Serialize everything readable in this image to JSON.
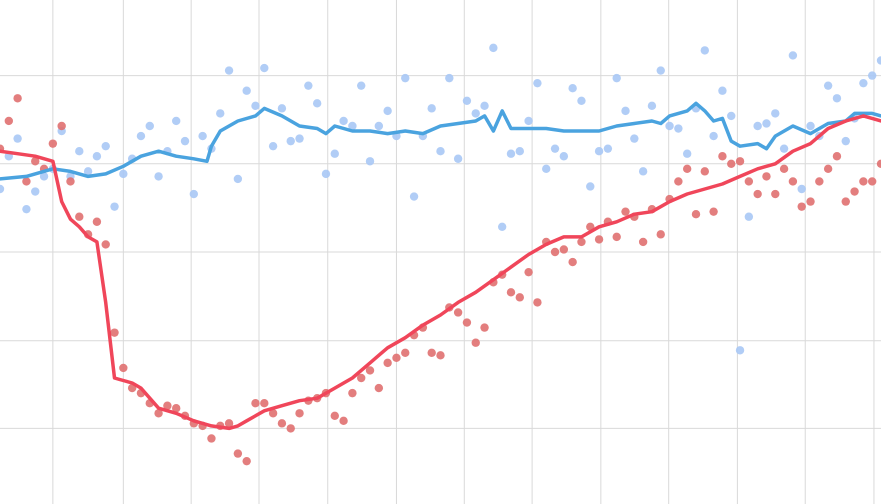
{
  "chart_data": {
    "type": "scatter",
    "title": "",
    "xlabel": "",
    "ylabel": "",
    "xlim": [
      0,
      100
    ],
    "ylim": [
      0,
      100
    ],
    "grid": true,
    "x_gridlines": [
      6,
      14,
      21.7,
      29.4,
      37.2,
      45,
      52.7,
      60.4,
      68.2,
      75.9,
      83.7,
      91.4,
      99.2
    ],
    "y_gridlines": [
      15,
      32.4,
      50,
      67.5,
      85
    ],
    "legend": "none",
    "series": [
      {
        "color": "#4aa3df",
        "point_color": "#a9c8f5",
        "trend": [
          [
            0,
            64.5
          ],
          [
            3,
            65
          ],
          [
            6,
            66.5
          ],
          [
            8,
            66
          ],
          [
            10,
            65
          ],
          [
            12,
            65.5
          ],
          [
            14,
            67
          ],
          [
            16,
            69
          ],
          [
            18,
            70
          ],
          [
            20,
            69
          ],
          [
            22,
            68.5
          ],
          [
            23.5,
            68
          ],
          [
            24,
            71
          ],
          [
            25,
            74
          ],
          [
            27,
            76
          ],
          [
            29,
            77
          ],
          [
            30,
            78.5
          ],
          [
            32,
            77
          ],
          [
            34,
            75
          ],
          [
            36,
            74.5
          ],
          [
            37,
            73.5
          ],
          [
            38,
            75
          ],
          [
            40,
            74
          ],
          [
            42,
            74
          ],
          [
            44,
            73.5
          ],
          [
            46,
            74
          ],
          [
            48,
            73.5
          ],
          [
            50,
            75
          ],
          [
            52,
            75.5
          ],
          [
            54,
            76
          ],
          [
            55,
            77
          ],
          [
            56,
            74
          ],
          [
            57,
            78
          ],
          [
            58,
            74.5
          ],
          [
            60,
            74.5
          ],
          [
            62,
            74.5
          ],
          [
            64,
            74
          ],
          [
            66,
            74
          ],
          [
            68,
            74
          ],
          [
            70,
            75
          ],
          [
            72,
            75.5
          ],
          [
            74,
            76
          ],
          [
            75,
            75.5
          ],
          [
            76,
            77
          ],
          [
            78,
            78
          ],
          [
            79,
            79.5
          ],
          [
            80,
            78
          ],
          [
            81,
            76
          ],
          [
            82,
            76.5
          ],
          [
            83,
            72
          ],
          [
            84,
            71
          ],
          [
            86,
            71.5
          ],
          [
            87,
            70.5
          ],
          [
            88,
            73
          ],
          [
            90,
            75
          ],
          [
            92,
            73.5
          ],
          [
            94,
            75.5
          ],
          [
            96,
            76
          ],
          [
            97,
            77.5
          ],
          [
            99,
            77.5
          ],
          [
            100,
            77
          ]
        ],
        "points": [
          [
            0,
            62.5
          ],
          [
            1,
            69
          ],
          [
            2,
            72.5
          ],
          [
            3,
            58.5
          ],
          [
            4,
            62
          ],
          [
            5,
            65
          ],
          [
            6,
            66.5
          ],
          [
            7,
            74
          ],
          [
            8,
            65
          ],
          [
            9,
            70
          ],
          [
            10,
            66
          ],
          [
            11,
            69
          ],
          [
            12,
            71
          ],
          [
            13,
            59
          ],
          [
            14,
            65.5
          ],
          [
            15,
            68.5
          ],
          [
            16,
            73
          ],
          [
            17,
            75
          ],
          [
            18,
            65
          ],
          [
            19,
            70
          ],
          [
            20,
            76
          ],
          [
            21,
            72
          ],
          [
            22,
            61.5
          ],
          [
            23,
            73
          ],
          [
            24,
            70.5
          ],
          [
            25,
            77.5
          ],
          [
            26,
            86
          ],
          [
            27,
            64.5
          ],
          [
            28,
            82
          ],
          [
            29,
            79
          ],
          [
            30,
            86.5
          ],
          [
            31,
            71
          ],
          [
            32,
            78.5
          ],
          [
            33,
            72
          ],
          [
            34,
            72.5
          ],
          [
            35,
            83
          ],
          [
            36,
            79.5
          ],
          [
            37,
            65.5
          ],
          [
            38,
            69.5
          ],
          [
            39,
            76
          ],
          [
            40,
            75
          ],
          [
            41,
            83
          ],
          [
            42,
            68
          ],
          [
            43,
            75
          ],
          [
            44,
            78
          ],
          [
            45,
            73
          ],
          [
            46,
            84.5
          ],
          [
            47,
            61
          ],
          [
            48,
            73
          ],
          [
            49,
            78.5
          ],
          [
            50,
            70
          ],
          [
            51,
            84.5
          ],
          [
            52,
            68.5
          ],
          [
            53,
            80
          ],
          [
            54,
            77.5
          ],
          [
            55,
            79
          ],
          [
            56,
            90.5
          ],
          [
            57,
            55
          ],
          [
            58,
            69.5
          ],
          [
            59,
            70
          ],
          [
            60,
            76
          ],
          [
            61,
            83.5
          ],
          [
            62,
            66.5
          ],
          [
            63,
            70.5
          ],
          [
            64,
            69
          ],
          [
            65,
            82.5
          ],
          [
            66,
            80
          ],
          [
            67,
            63
          ],
          [
            68,
            70
          ],
          [
            69,
            70.5
          ],
          [
            70,
            84.5
          ],
          [
            71,
            78
          ],
          [
            72,
            72.5
          ],
          [
            73,
            66
          ],
          [
            74,
            79
          ],
          [
            75,
            86
          ],
          [
            76,
            75
          ],
          [
            77,
            74.5
          ],
          [
            78,
            69.5
          ],
          [
            79,
            78.5
          ],
          [
            80,
            90
          ],
          [
            81,
            73
          ],
          [
            82,
            82
          ],
          [
            83,
            77
          ],
          [
            84,
            30.5
          ],
          [
            85,
            57
          ],
          [
            86,
            75
          ],
          [
            87,
            75.5
          ],
          [
            88,
            77.5
          ],
          [
            89,
            70.5
          ],
          [
            90,
            89
          ],
          [
            91,
            62.5
          ],
          [
            92,
            75
          ],
          [
            93,
            73
          ],
          [
            94,
            83
          ],
          [
            95,
            80.5
          ],
          [
            96,
            72
          ],
          [
            97,
            76.5
          ],
          [
            98,
            83.5
          ],
          [
            99,
            85
          ],
          [
            100,
            88
          ]
        ]
      },
      {
        "color": "#f0465a",
        "point_color": "#e07070",
        "trend": [
          [
            0,
            70
          ],
          [
            2,
            69.5
          ],
          [
            4,
            69
          ],
          [
            6,
            68
          ],
          [
            7,
            60
          ],
          [
            8,
            56.5
          ],
          [
            9,
            55
          ],
          [
            10,
            53
          ],
          [
            11,
            52
          ],
          [
            12,
            40
          ],
          [
            13,
            25
          ],
          [
            14,
            24.5
          ],
          [
            15,
            24
          ],
          [
            16,
            23
          ],
          [
            17,
            21
          ],
          [
            18,
            19
          ],
          [
            20,
            18
          ],
          [
            22,
            16.5
          ],
          [
            24,
            15.5
          ],
          [
            26,
            15
          ],
          [
            27,
            15.5
          ],
          [
            28,
            16.5
          ],
          [
            30,
            18.5
          ],
          [
            32,
            19.5
          ],
          [
            34,
            20.5
          ],
          [
            36,
            21
          ],
          [
            38,
            23
          ],
          [
            40,
            25
          ],
          [
            42,
            28
          ],
          [
            44,
            31
          ],
          [
            46,
            33
          ],
          [
            48,
            35.5
          ],
          [
            50,
            37.5
          ],
          [
            52,
            40
          ],
          [
            54,
            42
          ],
          [
            56,
            44.5
          ],
          [
            58,
            47
          ],
          [
            60,
            49.5
          ],
          [
            62,
            51.5
          ],
          [
            64,
            53
          ],
          [
            66,
            53
          ],
          [
            68,
            55
          ],
          [
            70,
            56
          ],
          [
            72,
            57.5
          ],
          [
            74,
            58
          ],
          [
            76,
            60
          ],
          [
            78,
            61.5
          ],
          [
            80,
            62.5
          ],
          [
            82,
            63.5
          ],
          [
            84,
            65
          ],
          [
            86,
            66.5
          ],
          [
            88,
            67.5
          ],
          [
            90,
            70
          ],
          [
            92,
            71.5
          ],
          [
            94,
            74.5
          ],
          [
            96,
            76
          ],
          [
            98,
            77
          ],
          [
            100,
            76
          ],
          [
            101,
            77
          ],
          [
            103,
            77
          ]
        ],
        "points": [
          [
            0,
            70.5
          ],
          [
            1,
            76
          ],
          [
            2,
            80.5
          ],
          [
            3,
            64
          ],
          [
            4,
            68
          ],
          [
            5,
            66.5
          ],
          [
            6,
            71.5
          ],
          [
            7,
            75
          ],
          [
            8,
            64
          ],
          [
            9,
            57
          ],
          [
            10,
            53.5
          ],
          [
            11,
            56
          ],
          [
            12,
            51.5
          ],
          [
            13,
            34
          ],
          [
            14,
            27
          ],
          [
            15,
            23
          ],
          [
            16,
            22
          ],
          [
            17,
            20
          ],
          [
            18,
            18
          ],
          [
            19,
            19.5
          ],
          [
            20,
            19
          ],
          [
            21,
            17.5
          ],
          [
            22,
            16
          ],
          [
            23,
            15.5
          ],
          [
            24,
            13
          ],
          [
            25,
            15.5
          ],
          [
            26,
            16
          ],
          [
            27,
            10
          ],
          [
            28,
            8.5
          ],
          [
            29,
            20
          ],
          [
            30,
            20
          ],
          [
            31,
            18
          ],
          [
            32,
            16
          ],
          [
            33,
            15
          ],
          [
            34,
            18
          ],
          [
            35,
            20.5
          ],
          [
            36,
            21
          ],
          [
            37,
            22
          ],
          [
            38,
            17.5
          ],
          [
            39,
            16.5
          ],
          [
            40,
            22
          ],
          [
            41,
            25
          ],
          [
            42,
            26.5
          ],
          [
            43,
            23
          ],
          [
            44,
            28
          ],
          [
            45,
            29
          ],
          [
            46,
            30
          ],
          [
            47,
            33.5
          ],
          [
            48,
            35
          ],
          [
            49,
            30
          ],
          [
            50,
            29.5
          ],
          [
            51,
            39
          ],
          [
            52,
            38
          ],
          [
            53,
            36
          ],
          [
            54,
            32
          ],
          [
            55,
            35
          ],
          [
            56,
            44
          ],
          [
            57,
            45.5
          ],
          [
            58,
            42
          ],
          [
            59,
            41
          ],
          [
            60,
            46
          ],
          [
            61,
            40
          ],
          [
            62,
            52
          ],
          [
            63,
            50
          ],
          [
            64,
            50.5
          ],
          [
            65,
            48
          ],
          [
            66,
            52
          ],
          [
            67,
            55
          ],
          [
            68,
            52.5
          ],
          [
            69,
            56
          ],
          [
            70,
            53
          ],
          [
            71,
            58
          ],
          [
            72,
            57
          ],
          [
            73,
            52
          ],
          [
            74,
            58.5
          ],
          [
            75,
            53.5
          ],
          [
            76,
            60.5
          ],
          [
            77,
            64
          ],
          [
            78,
            66.5
          ],
          [
            79,
            57.5
          ],
          [
            80,
            66
          ],
          [
            81,
            58
          ],
          [
            82,
            69
          ],
          [
            83,
            67.5
          ],
          [
            84,
            68
          ],
          [
            85,
            64
          ],
          [
            86,
            61.5
          ],
          [
            87,
            65
          ],
          [
            88,
            61.5
          ],
          [
            89,
            66.5
          ],
          [
            90,
            64
          ],
          [
            91,
            59
          ],
          [
            92,
            60
          ],
          [
            93,
            64
          ],
          [
            94,
            66.5
          ],
          [
            95,
            69
          ],
          [
            96,
            60
          ],
          [
            97,
            62
          ],
          [
            98,
            64
          ],
          [
            99,
            64
          ],
          [
            100,
            67.5
          ]
        ]
      }
    ]
  }
}
